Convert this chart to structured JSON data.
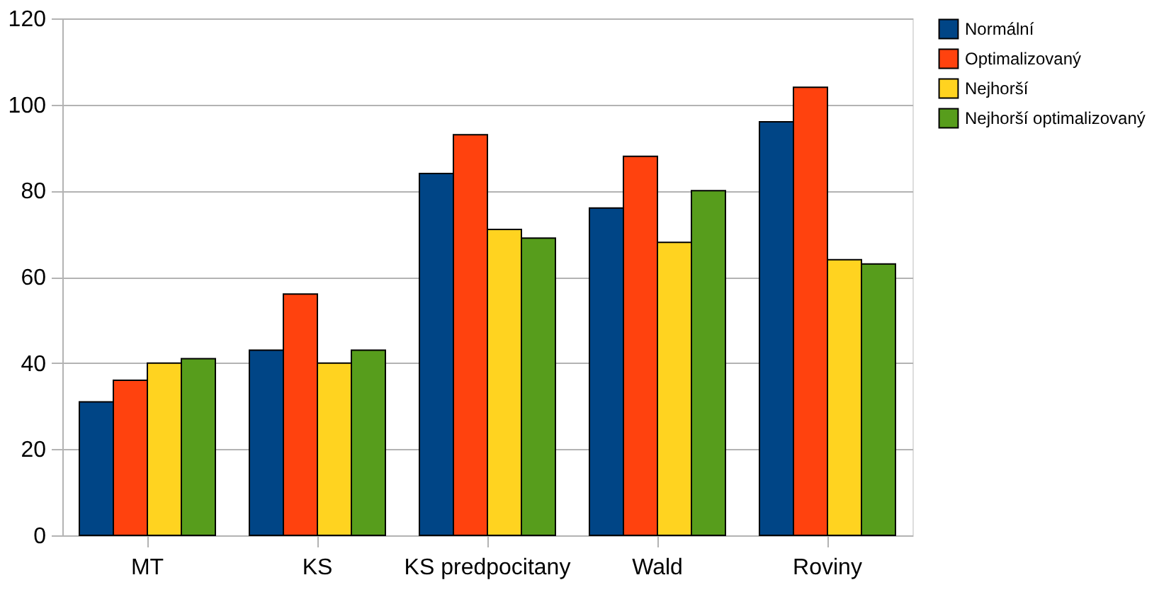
{
  "chart_data": {
    "type": "bar",
    "categories": [
      "MT",
      "KS",
      "KS predpocitany",
      "Wald",
      "Roviny"
    ],
    "series": [
      {
        "name": "Normální",
        "color": "#004586",
        "values": [
          31,
          43,
          84,
          76,
          96
        ]
      },
      {
        "name": "Optimalizovaný",
        "color": "#ff420e",
        "values": [
          36,
          56,
          93,
          88,
          104
        ]
      },
      {
        "name": "Nejhorší",
        "color": "#ffd320",
        "values": [
          40,
          40,
          71,
          68,
          64
        ]
      },
      {
        "name": "Nejhorší optimalizovaný",
        "color": "#579d1c",
        "values": [
          41,
          43,
          69,
          80,
          63
        ]
      }
    ],
    "ylim": [
      0,
      120
    ],
    "yticks": [
      0,
      20,
      40,
      60,
      80,
      100,
      120
    ],
    "grid": "y",
    "legend": "right"
  }
}
